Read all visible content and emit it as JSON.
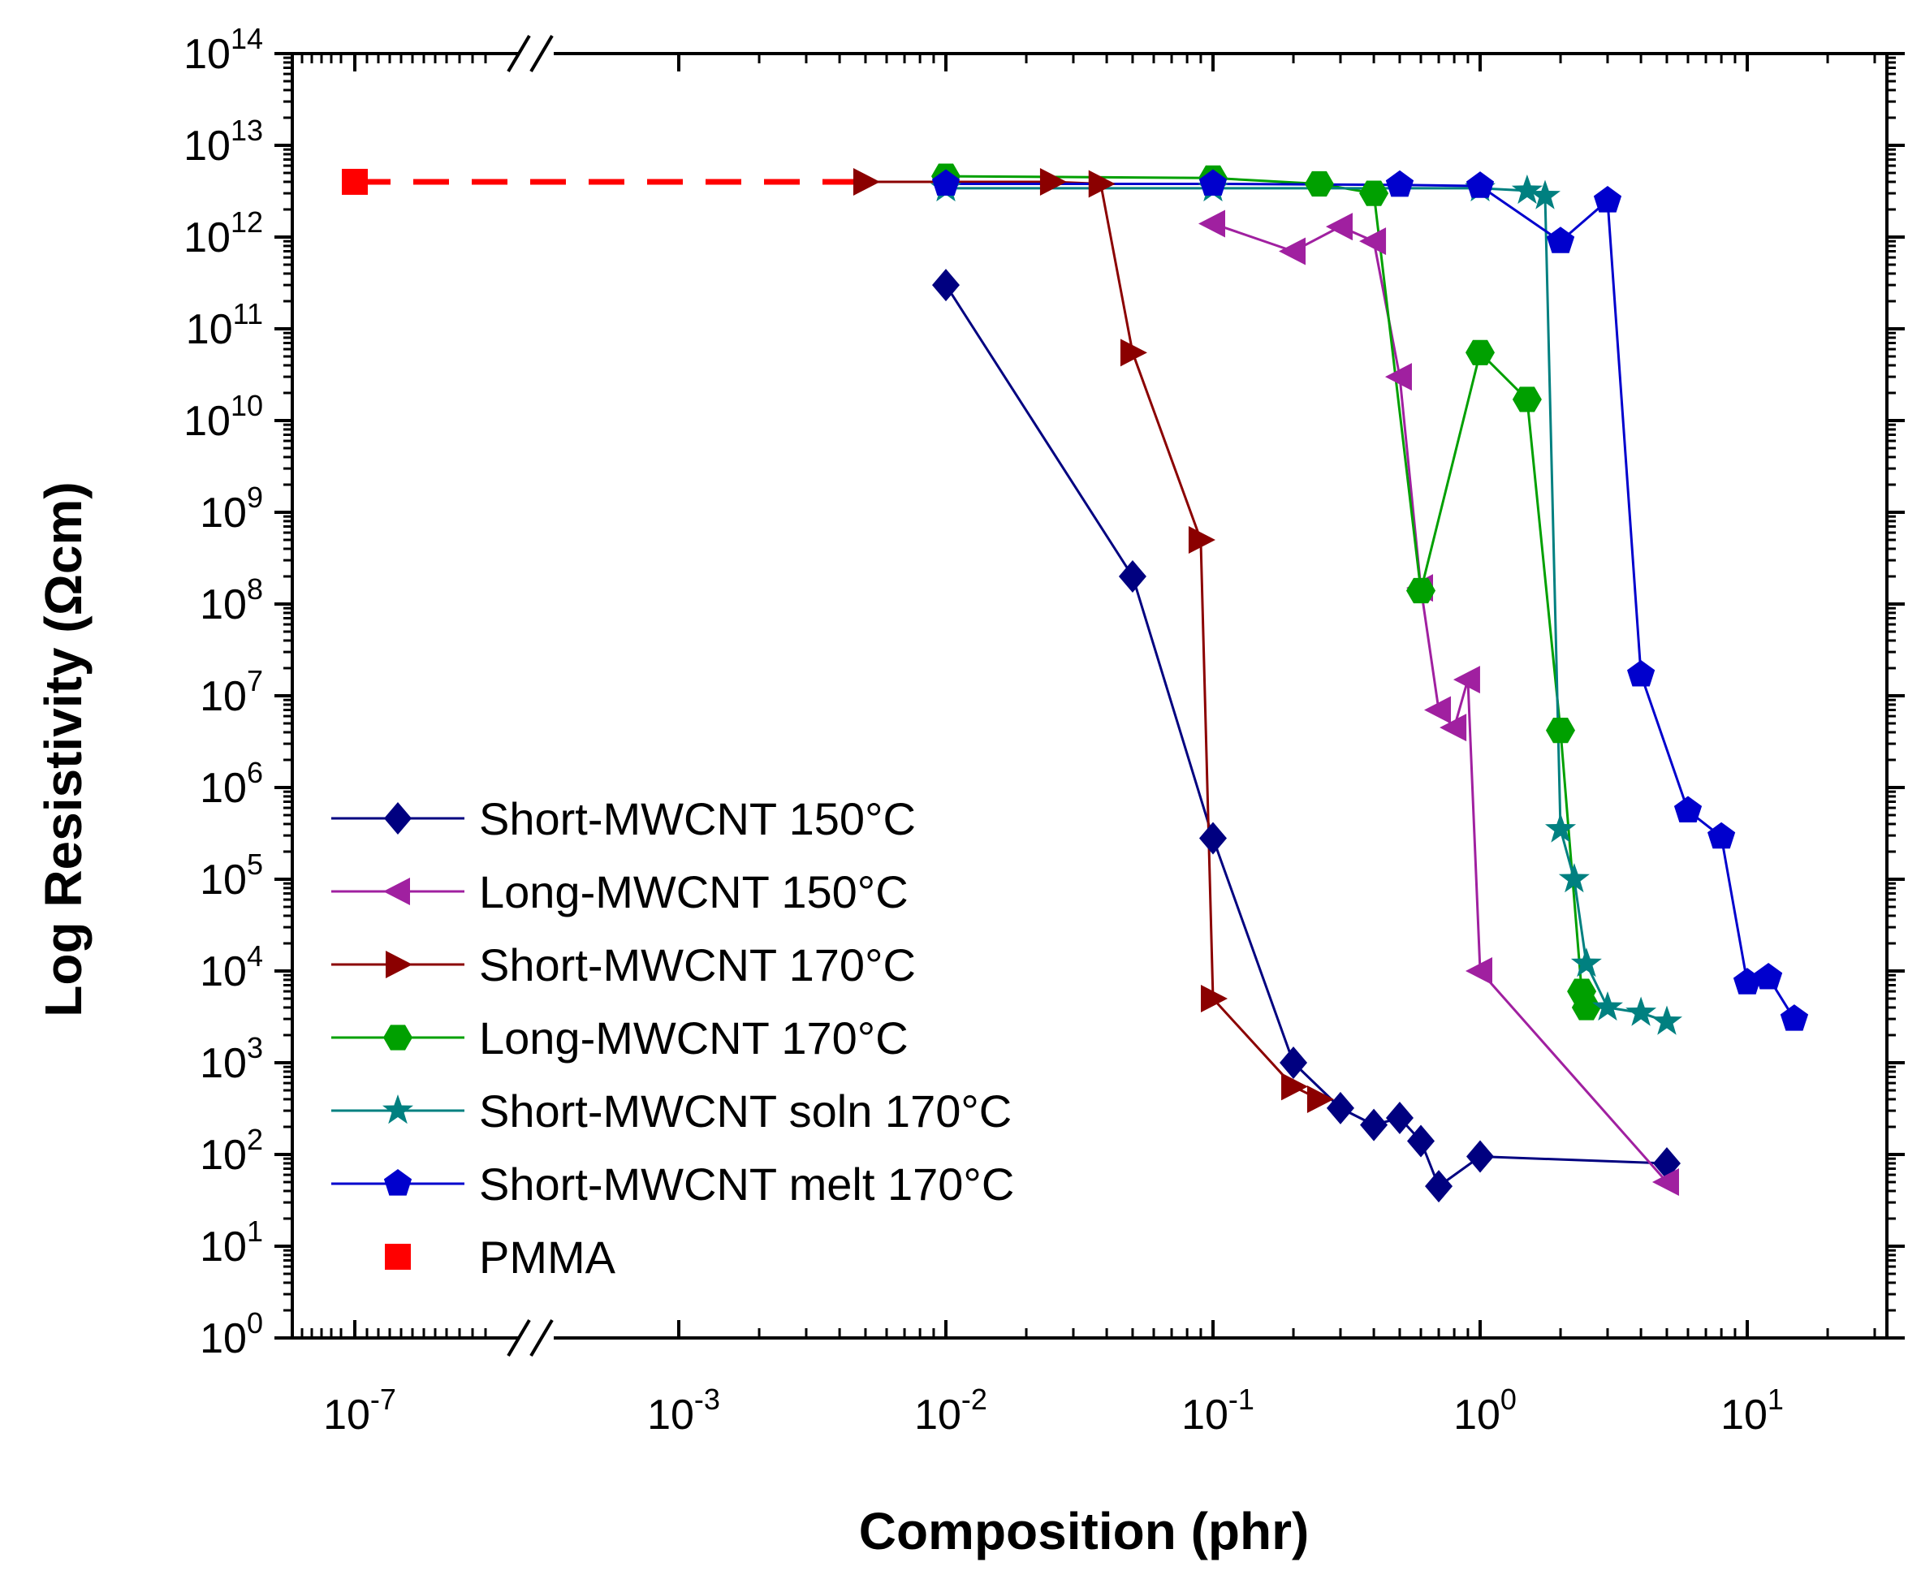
{
  "chart_data": {
    "type": "scatter",
    "title": "",
    "xlabel": "Composition (phr)",
    "ylabel": "Log Resistivity (Ωcm)",
    "xscale": "log (broken axis)",
    "yscale": "log",
    "ylim": [
      1,
      100000000000000
    ],
    "x_break": "between 1e-7 and 1e-4",
    "x_ticks": [
      {
        "value": 1e-07,
        "base": "10",
        "exp": "-7"
      },
      {
        "value": 0.001,
        "base": "10",
        "exp": "-3"
      },
      {
        "value": 0.01,
        "base": "10",
        "exp": "-2"
      },
      {
        "value": 0.1,
        "base": "10",
        "exp": "-1"
      },
      {
        "value": 1,
        "base": "10",
        "exp": "0"
      },
      {
        "value": 10,
        "base": "10",
        "exp": "1"
      }
    ],
    "y_ticks": [
      {
        "value": 1,
        "base": "10",
        "exp": "0"
      },
      {
        "value": 10,
        "base": "10",
        "exp": "1"
      },
      {
        "value": 100,
        "base": "10",
        "exp": "2"
      },
      {
        "value": 1000,
        "base": "10",
        "exp": "3"
      },
      {
        "value": 10000,
        "base": "10",
        "exp": "4"
      },
      {
        "value": 100000,
        "base": "10",
        "exp": "5"
      },
      {
        "value": 1000000,
        "base": "10",
        "exp": "6"
      },
      {
        "value": 10000000,
        "base": "10",
        "exp": "7"
      },
      {
        "value": 100000000,
        "base": "10",
        "exp": "8"
      },
      {
        "value": 1000000000,
        "base": "10",
        "exp": "9"
      },
      {
        "value": 10000000000,
        "base": "10",
        "exp": "10"
      },
      {
        "value": 100000000000,
        "base": "10",
        "exp": "11"
      },
      {
        "value": 1000000000000,
        "base": "10",
        "exp": "12"
      },
      {
        "value": 10000000000000,
        "base": "10",
        "exp": "13"
      },
      {
        "value": 100000000000000,
        "base": "10",
        "exp": "14"
      }
    ],
    "legend_position": "lower-left",
    "series": [
      {
        "name": "Short-MWCNT 150°C",
        "color": "#000080",
        "marker": "diamond",
        "points": [
          [
            0.01,
            300000000000.0
          ],
          [
            0.05,
            200000000.0
          ],
          [
            0.1,
            280000.0
          ],
          [
            0.2,
            1000.0
          ],
          [
            0.3,
            320.0
          ],
          [
            0.4,
            210.0
          ],
          [
            0.5,
            250.0
          ],
          [
            0.6,
            140.0
          ],
          [
            0.7,
            45.0
          ],
          [
            1.0,
            95.0
          ],
          [
            5.0,
            80.0
          ]
        ]
      },
      {
        "name": "Long-MWCNT 150°C",
        "color": "#a020a0",
        "marker": "triangle-left",
        "points": [
          [
            0.1,
            1400000000000.0
          ],
          [
            0.2,
            700000000000.0
          ],
          [
            0.3,
            1300000000000.0
          ],
          [
            0.4,
            900000000000.0
          ],
          [
            0.5,
            30000000000.0
          ],
          [
            0.6,
            150000000.0
          ],
          [
            0.7,
            7000000.0
          ],
          [
            0.8,
            4500000.0
          ],
          [
            0.9,
            15000000.0
          ],
          [
            1.0,
            10000.0
          ],
          [
            5.0,
            50.0
          ]
        ]
      },
      {
        "name": "Short-MWCNT 170°C",
        "color": "#8b0000",
        "marker": "triangle-right",
        "points": [
          [
            0.005,
            4000000000000.0
          ],
          [
            0.025,
            4000000000000.0
          ],
          [
            0.038,
            3800000000000.0
          ],
          [
            0.05,
            55000000000.0
          ],
          [
            0.09,
            500000000.0
          ],
          [
            0.1,
            5000.0
          ],
          [
            0.2,
            550.0
          ],
          [
            0.25,
            400.0
          ]
        ]
      },
      {
        "name": "Long-MWCNT 170°C",
        "color": "#00a000",
        "marker": "hexagon",
        "points": [
          [
            0.01,
            4600000000000.0
          ],
          [
            0.1,
            4400000000000.0
          ],
          [
            0.25,
            3800000000000.0
          ],
          [
            0.4,
            3000000000000.0
          ],
          [
            0.6,
            140000000.0
          ],
          [
            1.0,
            55000000000.0
          ],
          [
            1.5,
            17000000000.0
          ],
          [
            2.0,
            4200000.0
          ],
          [
            2.4,
            6000.0
          ],
          [
            2.5,
            4000.0
          ]
        ]
      },
      {
        "name": "Short-MWCNT soln 170°C",
        "color": "#008080",
        "marker": "star",
        "points": [
          [
            0.01,
            3400000000000.0
          ],
          [
            0.1,
            3400000000000.0
          ],
          [
            1.0,
            3400000000000.0
          ],
          [
            1.5,
            3200000000000.0
          ],
          [
            1.75,
            2800000000000.0
          ],
          [
            2.0,
            350000.0
          ],
          [
            2.25,
            100000.0
          ],
          [
            2.5,
            12000.0
          ],
          [
            3.0,
            4000.0
          ],
          [
            4.0,
            3500.0
          ],
          [
            5.0,
            2800.0
          ]
        ]
      },
      {
        "name": "Short-MWCNT melt 170°C",
        "color": "#0000cd",
        "marker": "pentagon",
        "points": [
          [
            0.01,
            3800000000000.0
          ],
          [
            0.1,
            3800000000000.0
          ],
          [
            0.5,
            3700000000000.0
          ],
          [
            1.0,
            3600000000000.0
          ],
          [
            2.0,
            900000000000.0
          ],
          [
            3.0,
            2500000000000.0
          ],
          [
            4.0,
            17000000.0
          ],
          [
            6.0,
            560000.0
          ],
          [
            8.0,
            290000.0
          ],
          [
            10.0,
            7500.0
          ],
          [
            12.0,
            8500.0
          ],
          [
            15.0,
            3000.0
          ]
        ]
      },
      {
        "name": "PMMA",
        "color": "#ff0000",
        "marker": "square",
        "points": [
          [
            1e-07,
            4000000000000.0
          ]
        ],
        "reference_line": {
          "style": "dashed",
          "to_x": 0.005,
          "y": 4000000000000.0
        }
      }
    ]
  }
}
